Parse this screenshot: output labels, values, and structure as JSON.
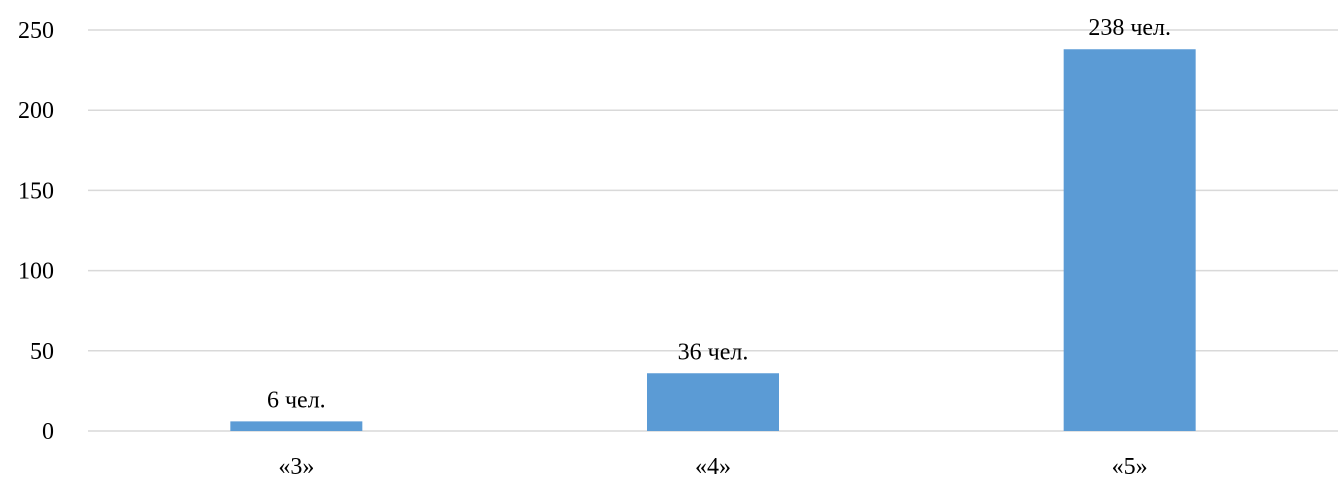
{
  "chart_data": {
    "type": "bar",
    "categories": [
      "«3»",
      "«4»",
      "«5»"
    ],
    "values": [
      6,
      36,
      238
    ],
    "data_labels": [
      "6 чел.",
      "36 чел.",
      "238 чел."
    ],
    "ylim": [
      0,
      250
    ],
    "yticks": [
      0,
      50,
      100,
      150,
      200,
      250
    ],
    "ytick_labels": [
      "0",
      "50",
      "100",
      "150",
      "200",
      "250"
    ],
    "grid": true,
    "legend": "none",
    "colors": {
      "bar": "#5b9bd5",
      "grid": "#d9d9d9",
      "text": "#000000"
    }
  }
}
